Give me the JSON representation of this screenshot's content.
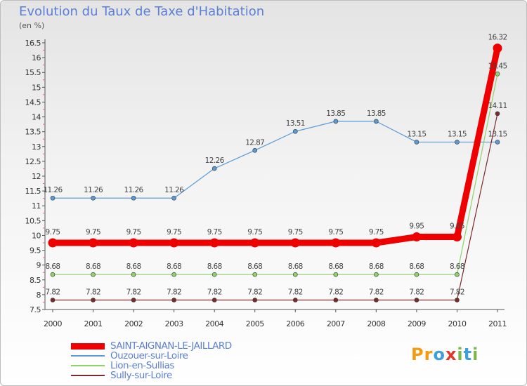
{
  "title": "Evolution du Taux de Taxe d'Habitation",
  "subtitle": "(en %)",
  "logo": {
    "text": "Proxiti",
    "letters": [
      {
        "ch": "P",
        "color": "#f39c12"
      },
      {
        "ch": "r",
        "color": "#f39c12"
      },
      {
        "ch": "o",
        "color": "#3ea0d8"
      },
      {
        "ch": "x",
        "color": "#e0392b"
      },
      {
        "ch": "i",
        "color": "#7ab648"
      },
      {
        "ch": "t",
        "color": "#3ea0d8"
      },
      {
        "ch": "i",
        "color": "#7ab648"
      }
    ]
  },
  "chart_data": {
    "type": "line",
    "title": "Evolution du Taux de Taxe d'Habitation",
    "ylabel": "(en %)",
    "x": [
      "2000",
      "2001",
      "2002",
      "2003",
      "2004",
      "2005",
      "2006",
      "2007",
      "2008",
      "2009",
      "2010",
      "2011"
    ],
    "ylim": [
      7.5,
      16.5
    ],
    "yticks": [
      "7.5",
      "8",
      "8.5",
      "9",
      "9.5",
      "10",
      "10.5",
      "11",
      "11.5",
      "12",
      "12.5",
      "13",
      "13.5",
      "14",
      "14.5",
      "15",
      "15.5",
      "16",
      "16.5"
    ],
    "grid": false,
    "legend_position": "bottom-left",
    "series": [
      {
        "name": "SAINT-AIGNAN-LE-JAILLARD",
        "color": "#ee0000",
        "emphasis": true,
        "values": [
          9.75,
          9.75,
          9.75,
          9.75,
          9.75,
          9.75,
          9.75,
          9.75,
          9.75,
          9.95,
          9.95,
          16.32
        ],
        "labels": [
          "9.75",
          "9.75",
          "9.75",
          "9.75",
          "9.75",
          "9.75",
          "9.75",
          "9.75",
          "9.75",
          "9.95",
          "9.95",
          "16.32"
        ]
      },
      {
        "name": "Ouzouer-sur-Loire",
        "color": "#5b9bd5",
        "values": [
          11.26,
          11.26,
          11.26,
          11.26,
          12.26,
          12.87,
          13.51,
          13.85,
          13.85,
          13.15,
          13.15,
          13.15
        ],
        "labels": [
          "11.26",
          "11.26",
          "11.26",
          "11.26",
          "12.26",
          "12.87",
          "13.51",
          "13.85",
          "13.85",
          "13.15",
          "13.15",
          "13.15"
        ]
      },
      {
        "name": "Lion-en-Sullias",
        "color": "#8fd16a",
        "values": [
          8.68,
          8.68,
          8.68,
          8.68,
          8.68,
          8.68,
          8.68,
          8.68,
          8.68,
          8.68,
          8.68,
          15.45
        ],
        "labels": [
          "8.68",
          "8.68",
          "8.68",
          "8.68",
          "8.68",
          "8.68",
          "8.68",
          "8.68",
          "8.68",
          "8.68",
          "8.68",
          "15.45"
        ]
      },
      {
        "name": "Sully-sur-Loire",
        "color": "#7b2a2a",
        "values": [
          7.82,
          7.82,
          7.82,
          7.82,
          7.82,
          7.82,
          7.82,
          7.82,
          7.82,
          7.82,
          7.82,
          14.11
        ],
        "labels": [
          "7.82",
          "7.82",
          "7.82",
          "7.82",
          "7.82",
          "7.82",
          "7.82",
          "7.82",
          "7.82",
          "7.82",
          "7.82",
          "14.11"
        ]
      }
    ]
  }
}
